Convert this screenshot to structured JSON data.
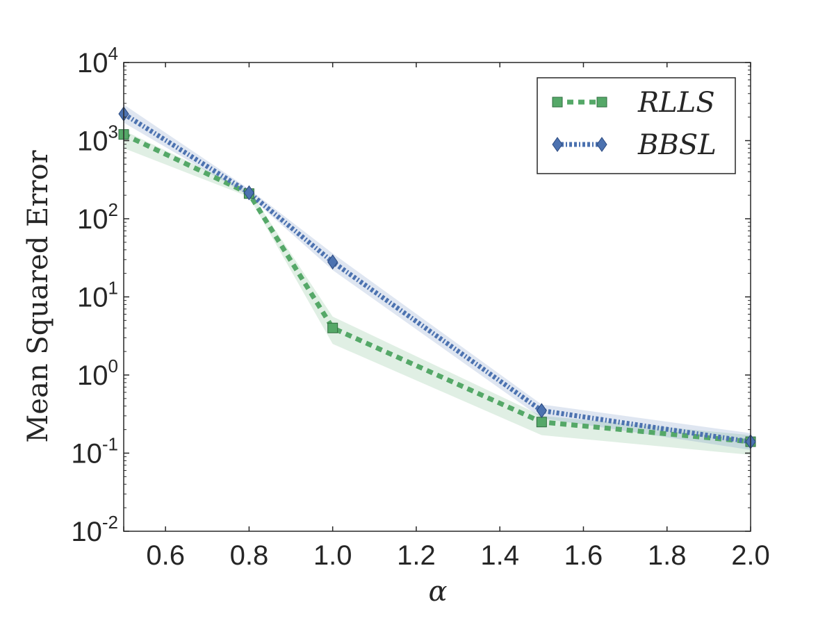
{
  "chart_data": {
    "type": "line",
    "title": "",
    "xlabel": "α",
    "ylabel": "Mean Squared Error",
    "xlim": [
      0.5,
      2.0
    ],
    "ylim_log10": [
      -2,
      4
    ],
    "y_scale": "log",
    "grid": false,
    "legend_position": "top-right",
    "x_ticks": [
      "0.6",
      "0.8",
      "1.0",
      "1.2",
      "1.4",
      "1.6",
      "1.8",
      "2.0"
    ],
    "x_tick_values": [
      0.6,
      0.8,
      1.0,
      1.2,
      1.4,
      1.6,
      1.8,
      2.0
    ],
    "y_ticks": [
      {
        "base": "10",
        "exp": "-2"
      },
      {
        "base": "10",
        "exp": "-1"
      },
      {
        "base": "10",
        "exp": "0"
      },
      {
        "base": "10",
        "exp": "1"
      },
      {
        "base": "10",
        "exp": "2"
      },
      {
        "base": "10",
        "exp": "3"
      },
      {
        "base": "10",
        "exp": "4"
      }
    ],
    "y_tick_values_log10": [
      -2,
      -1,
      0,
      1,
      2,
      3,
      4
    ],
    "x": [
      0.5,
      0.8,
      1.0,
      1.5,
      2.0
    ],
    "series": [
      {
        "name": "RLLS",
        "color": "#55a868",
        "marker": "square",
        "values": [
          1200,
          210,
          4.0,
          0.25,
          0.14
        ],
        "lower": [
          800,
          190,
          2.5,
          0.17,
          0.095
        ],
        "upper": [
          1350,
          230,
          5.6,
          0.3,
          0.17
        ]
      },
      {
        "name": "BBSL",
        "color": "#4c72b0",
        "marker": "diamond",
        "values": [
          2200,
          215,
          28,
          0.35,
          0.14
        ],
        "lower": [
          1700,
          195,
          22,
          0.28,
          0.11
        ],
        "upper": [
          2900,
          240,
          36,
          0.42,
          0.18
        ]
      }
    ]
  }
}
